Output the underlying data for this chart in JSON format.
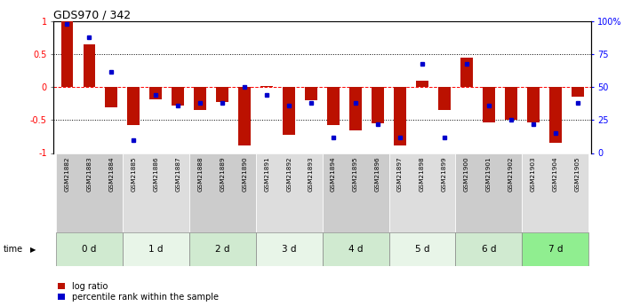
{
  "title": "GDS970 / 342",
  "samples": [
    "GSM21882",
    "GSM21883",
    "GSM21884",
    "GSM21885",
    "GSM21886",
    "GSM21887",
    "GSM21888",
    "GSM21889",
    "GSM21890",
    "GSM21891",
    "GSM21892",
    "GSM21893",
    "GSM21894",
    "GSM21895",
    "GSM21896",
    "GSM21897",
    "GSM21898",
    "GSM21899",
    "GSM21900",
    "GSM21901",
    "GSM21902",
    "GSM21903",
    "GSM21904",
    "GSM21905"
  ],
  "log_ratio": [
    1.0,
    0.65,
    -0.3,
    -0.58,
    -0.18,
    -0.28,
    -0.35,
    -0.22,
    -0.88,
    0.02,
    -0.72,
    -0.2,
    -0.58,
    -0.65,
    -0.55,
    -0.88,
    0.1,
    -0.35,
    0.45,
    -0.53,
    -0.5,
    -0.53,
    -0.85,
    -0.15
  ],
  "percentile": [
    0.98,
    0.88,
    0.62,
    0.1,
    0.44,
    0.36,
    0.38,
    0.38,
    0.5,
    0.44,
    0.36,
    0.38,
    0.12,
    0.38,
    0.22,
    0.12,
    0.68,
    0.12,
    0.68,
    0.36,
    0.25,
    0.22,
    0.15,
    0.38
  ],
  "time_groups": [
    {
      "label": "0 d",
      "start": 0,
      "end": 3,
      "color": "#d0ead0"
    },
    {
      "label": "1 d",
      "start": 3,
      "end": 6,
      "color": "#e8f5e8"
    },
    {
      "label": "2 d",
      "start": 6,
      "end": 9,
      "color": "#d0ead0"
    },
    {
      "label": "3 d",
      "start": 9,
      "end": 12,
      "color": "#e8f5e8"
    },
    {
      "label": "4 d",
      "start": 12,
      "end": 15,
      "color": "#d0ead0"
    },
    {
      "label": "5 d",
      "start": 15,
      "end": 18,
      "color": "#e8f5e8"
    },
    {
      "label": "6 d",
      "start": 18,
      "end": 21,
      "color": "#d0ead0"
    },
    {
      "label": "7 d",
      "start": 21,
      "end": 24,
      "color": "#90ee90"
    }
  ],
  "bar_color": "#bb1100",
  "dot_color": "#0000cc",
  "label_bg_odd": "#cccccc",
  "label_bg_even": "#dddddd",
  "ylim": [
    -1.0,
    1.0
  ],
  "yticks_left": [
    -1.0,
    -0.5,
    0.0,
    0.5,
    1.0
  ],
  "ytick_labels_left": [
    "-1",
    "-0.5",
    "0",
    "0.5",
    "1"
  ],
  "yticks_right": [
    0,
    25,
    50,
    75,
    100
  ],
  "ytick_labels_right": [
    "0",
    "25",
    "50",
    "75",
    "100%"
  ],
  "legend_log": "log ratio",
  "legend_pct": "percentile rank within the sample",
  "time_label": "time"
}
